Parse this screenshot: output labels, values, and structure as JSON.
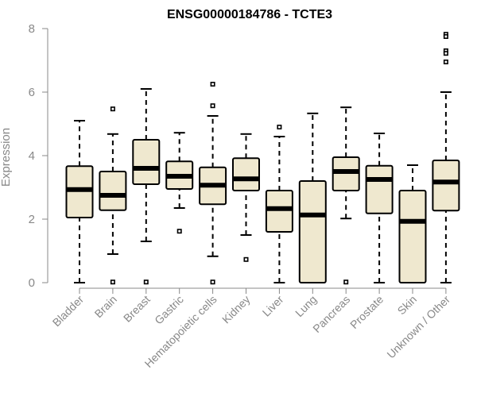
{
  "chart_data": {
    "type": "boxplot",
    "title": "ENSG00000184786 - TCTE3",
    "xlabel": "",
    "ylabel": "Expression",
    "ylim": [
      0,
      8
    ],
    "yticks": [
      0,
      2,
      4,
      6,
      8
    ],
    "categories": [
      "Bladder",
      "Brain",
      "Breast",
      "Gastric",
      "Hematopoietic cells",
      "Kidney",
      "Liver",
      "Lung",
      "Pancreas",
      "Prostate",
      "Skin",
      "Unknown / Other"
    ],
    "box_color": "#efe8cf",
    "boxes": [
      {
        "min": 0.0,
        "q1": 2.05,
        "median": 2.93,
        "q3": 3.67,
        "max": 5.1,
        "outliers": []
      },
      {
        "min": 0.9,
        "q1": 2.28,
        "median": 2.75,
        "q3": 3.5,
        "max": 4.68,
        "outliers": [
          5.47,
          0.02
        ]
      },
      {
        "min": 1.3,
        "q1": 3.1,
        "median": 3.6,
        "q3": 4.5,
        "max": 6.1,
        "outliers": [
          0.02
        ]
      },
      {
        "min": 2.35,
        "q1": 2.95,
        "median": 3.35,
        "q3": 3.82,
        "max": 4.72,
        "outliers": [
          1.62
        ]
      },
      {
        "min": 0.83,
        "q1": 2.47,
        "median": 3.07,
        "q3": 3.63,
        "max": 5.25,
        "outliers": [
          6.25,
          5.57,
          0.02
        ]
      },
      {
        "min": 1.5,
        "q1": 2.9,
        "median": 3.27,
        "q3": 3.92,
        "max": 4.68,
        "outliers": [
          0.73
        ]
      },
      {
        "min": 0.0,
        "q1": 1.6,
        "median": 2.33,
        "q3": 2.9,
        "max": 4.6,
        "outliers": [
          4.9
        ]
      },
      {
        "min": 0.0,
        "q1": 0.0,
        "median": 2.13,
        "q3": 3.2,
        "max": 5.33,
        "outliers": []
      },
      {
        "min": 2.02,
        "q1": 2.9,
        "median": 3.5,
        "q3": 3.95,
        "max": 5.52,
        "outliers": [
          0.02
        ]
      },
      {
        "min": 0.0,
        "q1": 2.18,
        "median": 3.25,
        "q3": 3.68,
        "max": 4.7,
        "outliers": []
      },
      {
        "min": 0.0,
        "q1": 0.0,
        "median": 1.93,
        "q3": 2.9,
        "max": 3.7,
        "outliers": []
      },
      {
        "min": 0.0,
        "q1": 2.27,
        "median": 3.17,
        "q3": 3.85,
        "max": 6.0,
        "outliers": [
          7.82,
          7.75,
          7.3,
          7.22,
          6.95
        ]
      }
    ]
  }
}
